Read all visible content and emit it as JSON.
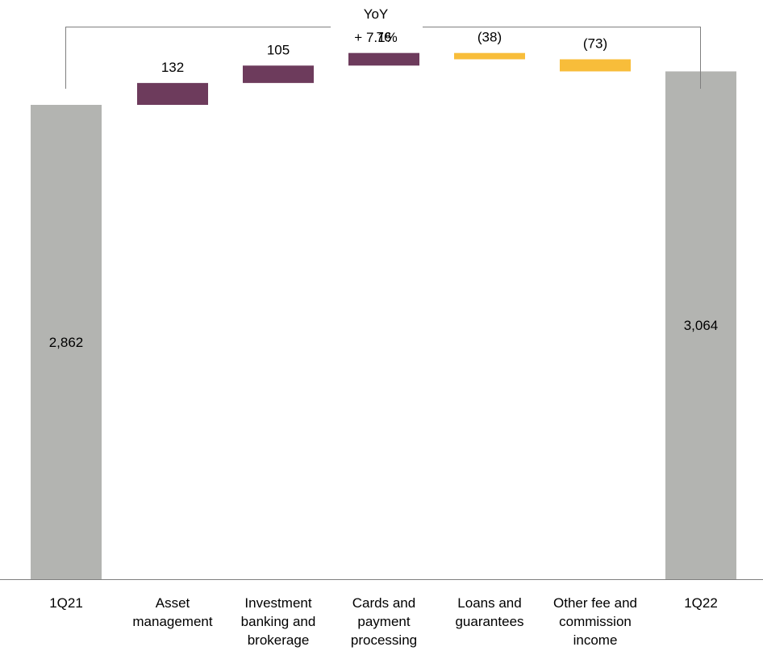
{
  "chart_data": {
    "type": "bar",
    "subtype": "waterfall",
    "categories": [
      [
        "1Q21"
      ],
      [
        "Asset",
        "management"
      ],
      [
        "Investment",
        "banking and",
        "brokerage"
      ],
      [
        "Cards and",
        "payment",
        "processing"
      ],
      [
        "Loans and",
        "guarantees"
      ],
      [
        "Other fee and",
        "commission",
        "income"
      ],
      [
        "1Q22"
      ]
    ],
    "values": [
      2862,
      132,
      105,
      76,
      -38,
      -73,
      3064
    ],
    "measures": [
      "total",
      "relative",
      "relative",
      "relative",
      "relative",
      "relative",
      "total"
    ],
    "value_labels": [
      "2,862",
      "132",
      "105",
      "76",
      "(38)",
      "(73)",
      "3,064"
    ],
    "ylim": [
      0,
      3300
    ],
    "grid": false,
    "legend": "none",
    "colors": {
      "total": "#b3b4b1",
      "increase": "#6d3b5c",
      "decrease": "#f8bd3a",
      "axis": "#7f7f7f",
      "bracket": "#7f7f7f",
      "text": "#000000"
    },
    "annotation": {
      "lines": [
        "YoY",
        "+ 7.1%"
      ]
    }
  }
}
